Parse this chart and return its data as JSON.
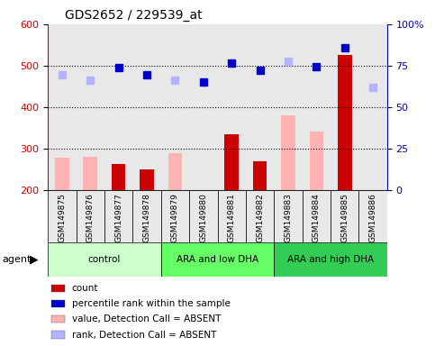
{
  "title": "GDS2652 / 229539_at",
  "samples": [
    "GSM149875",
    "GSM149876",
    "GSM149877",
    "GSM149878",
    "GSM149879",
    "GSM149880",
    "GSM149881",
    "GSM149882",
    "GSM149883",
    "GSM149884",
    "GSM149885",
    "GSM149886"
  ],
  "groups": [
    {
      "label": "control",
      "start": 0,
      "end": 3,
      "color": "#ccffcc"
    },
    {
      "label": "ARA and low DHA",
      "start": 4,
      "end": 7,
      "color": "#66ff66"
    },
    {
      "label": "ARA and high DHA",
      "start": 8,
      "end": 11,
      "color": "#33cc55"
    }
  ],
  "bar_values": [
    null,
    null,
    263,
    250,
    null,
    null,
    336,
    270,
    null,
    null,
    525,
    null
  ],
  "pink_values": [
    278,
    281,
    null,
    null,
    290,
    null,
    null,
    null,
    380,
    341,
    null,
    null
  ],
  "blue_values": [
    null,
    null,
    496,
    479,
    null,
    461,
    507,
    490,
    null,
    497,
    544,
    null
  ],
  "lavender_values": [
    479,
    466,
    null,
    null,
    466,
    null,
    null,
    null,
    511,
    null,
    null,
    447
  ],
  "ymin": 200,
  "ymax": 600,
  "yticks_left": [
    200,
    300,
    400,
    500,
    600
  ],
  "yticks_right": [
    0,
    25,
    50,
    75,
    100
  ],
  "grid_lines": [
    300,
    400,
    500
  ],
  "left_axis_color": "#cc0000",
  "right_axis_color": "#0000cc",
  "bar_color": "#cc0000",
  "pink_color": "#ffb3b3",
  "blue_color": "#0000cc",
  "lavender_color": "#b3b3ff",
  "bg_color": "#e8e8e8",
  "legend_items": [
    {
      "label": "count",
      "color": "#cc0000"
    },
    {
      "label": "percentile rank within the sample",
      "color": "#0000cc"
    },
    {
      "label": "value, Detection Call = ABSENT",
      "color": "#ffb3b3"
    },
    {
      "label": "rank, Detection Call = ABSENT",
      "color": "#b3b3ff"
    }
  ]
}
